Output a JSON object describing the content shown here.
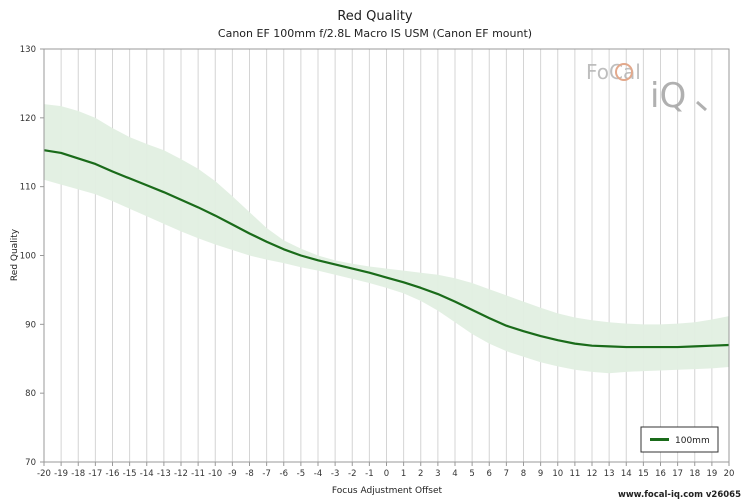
{
  "chart_data": {
    "type": "line",
    "title": "Red Quality",
    "subtitle": "Canon EF 100mm f/2.8L Macro IS USM (Canon EF mount)",
    "xlabel": "Focus Adjustment Offset",
    "ylabel": "Red Quality",
    "xlim": [
      -20,
      20
    ],
    "ylim": [
      70,
      130
    ],
    "x_ticks": [
      -20,
      -19,
      -18,
      -17,
      -16,
      -15,
      -14,
      -13,
      -12,
      -11,
      -10,
      -9,
      -8,
      -7,
      -6,
      -5,
      -4,
      -3,
      -2,
      -1,
      0,
      1,
      2,
      3,
      4,
      5,
      6,
      7,
      8,
      9,
      10,
      11,
      12,
      13,
      14,
      15,
      16,
      17,
      18,
      19,
      20
    ],
    "y_ticks": [
      70,
      80,
      90,
      100,
      110,
      120,
      130
    ],
    "grid": "vertical",
    "legend_position": "bottom-right",
    "series": [
      {
        "name": "100mm",
        "color": "#1a6b1a",
        "x": [
          -20,
          -19,
          -18,
          -17,
          -16,
          -15,
          -14,
          -13,
          -12,
          -11,
          -10,
          -9,
          -8,
          -7,
          -6,
          -5,
          -4,
          -3,
          -2,
          -1,
          0,
          1,
          2,
          3,
          4,
          5,
          6,
          7,
          8,
          9,
          10,
          11,
          12,
          13,
          14,
          15,
          16,
          17,
          18,
          19,
          20
        ],
        "values": [
          115.3,
          114.9,
          114.1,
          113.3,
          112.2,
          111.2,
          110.2,
          109.2,
          108.1,
          107.0,
          105.8,
          104.5,
          103.2,
          102.0,
          100.9,
          100.0,
          99.3,
          98.7,
          98.1,
          97.5,
          96.8,
          96.1,
          95.3,
          94.4,
          93.3,
          92.1,
          90.9,
          89.8,
          89.0,
          88.3,
          87.7,
          87.2,
          86.9,
          86.8,
          86.7,
          86.7,
          86.7,
          86.7,
          86.8,
          86.9,
          87.0
        ],
        "band_upper": [
          122.0,
          121.7,
          121.0,
          120.0,
          118.5,
          117.2,
          116.2,
          115.3,
          114.0,
          112.6,
          110.8,
          108.6,
          106.3,
          104.0,
          102.2,
          101.0,
          100.0,
          99.3,
          98.8,
          98.4,
          98.1,
          97.8,
          97.5,
          97.2,
          96.7,
          96.0,
          95.1,
          94.2,
          93.3,
          92.4,
          91.6,
          91.0,
          90.6,
          90.3,
          90.1,
          90.0,
          90.0,
          90.1,
          90.3,
          90.7,
          91.2
        ],
        "band_lower": [
          111.0,
          110.3,
          109.6,
          108.9,
          107.9,
          106.8,
          105.7,
          104.6,
          103.5,
          102.5,
          101.6,
          100.8,
          100.0,
          99.4,
          98.9,
          98.3,
          97.8,
          97.2,
          96.6,
          96.0,
          95.3,
          94.5,
          93.4,
          92.0,
          90.3,
          88.6,
          87.2,
          86.1,
          85.3,
          84.5,
          83.9,
          83.4,
          83.1,
          82.9,
          83.1,
          83.2,
          83.3,
          83.4,
          83.5,
          83.6,
          83.8
        ]
      }
    ]
  },
  "watermark": {
    "logo_top": "FoCal",
    "logo_bottom": "iQ",
    "credit": "www.focal-iq.com  v26065"
  }
}
